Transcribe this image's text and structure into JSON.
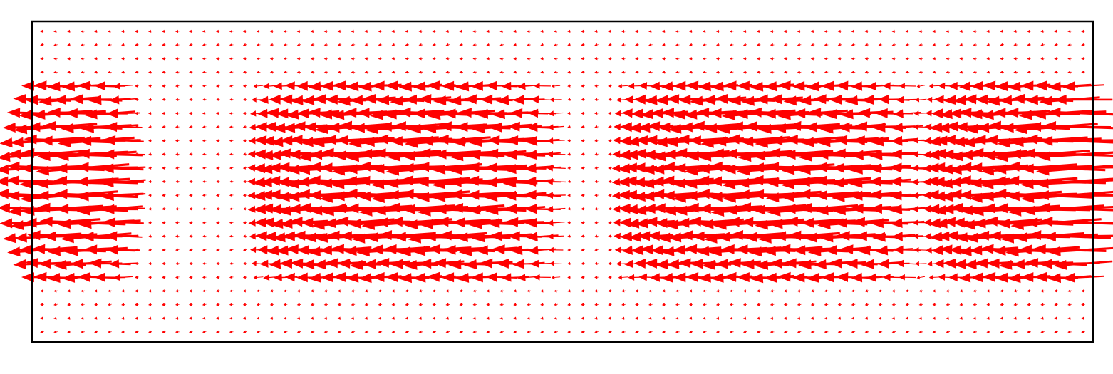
{
  "chart_data": {
    "type": "quiver",
    "title": "",
    "xlabel": "",
    "ylabel": "",
    "axes_visible": false,
    "grid": false,
    "legend": "none",
    "arrow_color": "#ff0000",
    "frame_color": "#000000",
    "background_color": "#ffffff",
    "field": {
      "nx": 78,
      "ny": 23,
      "direction": "leftward",
      "band_center_row": 11,
      "band_half_width_rows": 8,
      "max_magnitude": 1.0,
      "min_magnitude": 0.04,
      "strong_zones_x_fraction": [
        {
          "center": 0.02,
          "half_width": 0.07
        },
        {
          "center": 0.35,
          "half_width": 0.15
        },
        {
          "center": 0.7,
          "half_width": 0.15
        },
        {
          "center": 0.97,
          "half_width": 0.12
        }
      ]
    }
  }
}
